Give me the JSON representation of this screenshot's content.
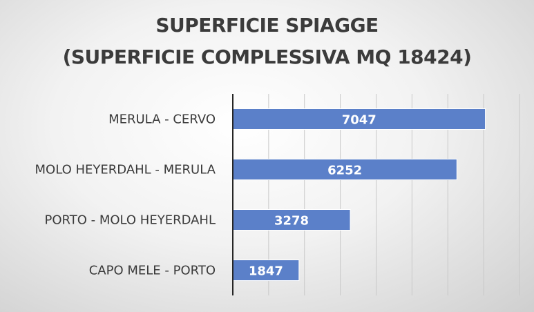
{
  "chart_data": {
    "type": "bar",
    "orientation": "horizontal",
    "title_lines": [
      "SUPERFICIE SPIAGGE",
      "(SUPERFICIE COMPLESSIVA MQ 18424)"
    ],
    "categories": [
      "MERULA - CERVO",
      "MOLO HEYERDAHL - MERULA",
      "PORTO - MOLO HEYERDAHL",
      "CAPO MELE - PORTO"
    ],
    "values": [
      7047,
      6252,
      3278,
      1847
    ],
    "xlim": [
      0,
      8000
    ],
    "grid": true,
    "bar_color": "#5b80c9",
    "data_labels": true
  }
}
